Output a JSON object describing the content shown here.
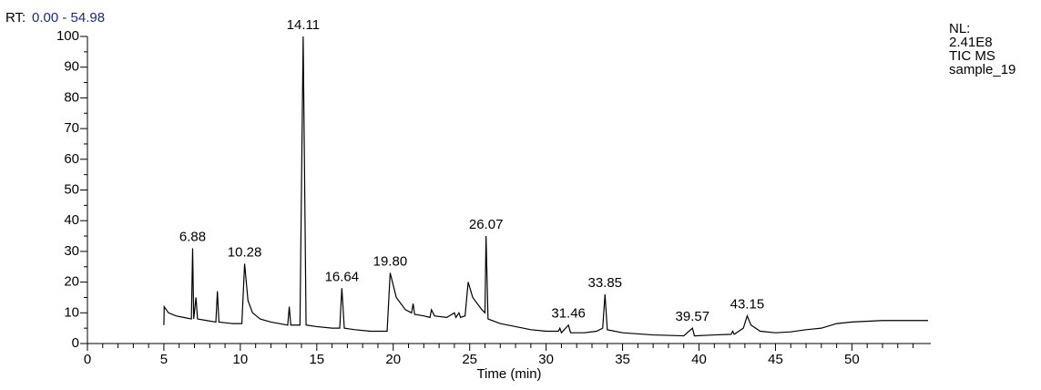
{
  "chart_data": {
    "type": "line",
    "rt_label": "RT:",
    "rt_range": "0.00 - 54.98",
    "info": [
      "NL:",
      "2.41E8",
      "TIC  MS",
      "sample_19"
    ],
    "xlabel": "Time (min)",
    "color": "#000000",
    "xlim": [
      0,
      54.98
    ],
    "ylim": [
      0,
      100
    ],
    "xticks": [
      0,
      5,
      10,
      15,
      20,
      25,
      30,
      35,
      40,
      45,
      50
    ],
    "xminorticks": [
      1,
      2,
      3,
      4,
      6,
      7,
      8,
      9,
      11,
      12,
      13,
      14,
      16,
      17,
      18,
      19,
      21,
      22,
      23,
      24,
      26,
      27,
      28,
      29,
      31,
      32,
      33,
      34,
      36,
      37,
      38,
      39,
      41,
      42,
      43,
      44,
      46,
      47,
      48,
      49,
      51,
      52,
      53,
      54
    ],
    "yticks": [
      0,
      10,
      20,
      30,
      40,
      50,
      60,
      70,
      80,
      90,
      100
    ],
    "yminorticks": [
      5,
      15,
      25,
      35,
      45,
      55,
      65,
      75,
      85,
      95
    ],
    "x": [
      5.0,
      5.02,
      5.3,
      5.8,
      6.3,
      6.8,
      6.88,
      6.95,
      7.1,
      7.2,
      7.8,
      8.4,
      8.5,
      8.6,
      9.5,
      10.1,
      10.28,
      10.5,
      10.8,
      11.3,
      12,
      13.1,
      13.2,
      13.3,
      13.9,
      14.11,
      14.3,
      15,
      16,
      16.5,
      16.64,
      16.8,
      17.5,
      18.5,
      19.6,
      19.8,
      20.2,
      20.8,
      21.2,
      21.3,
      21.4,
      22,
      22.4,
      22.5,
      22.7,
      23.5,
      24,
      24.1,
      24.3,
      24.4,
      24.7,
      24.9,
      25.2,
      25.8,
      26.0,
      26.07,
      26.2,
      27,
      28,
      29,
      30,
      30.8,
      30.9,
      31,
      31.46,
      31.6,
      32.5,
      33.3,
      33.7,
      33.85,
      34,
      35,
      37,
      39,
      39.57,
      39.7,
      41,
      42.1,
      42.2,
      42.3,
      42.9,
      43.15,
      43.4,
      44,
      45,
      46,
      47,
      48,
      49,
      50,
      52,
      54.98
    ],
    "values": [
      6,
      12,
      10,
      9,
      8.5,
      8,
      31,
      8,
      15,
      8,
      7.5,
      7,
      17,
      7,
      6.5,
      6.5,
      26,
      14,
      10,
      8,
      7,
      6,
      12,
      6,
      6,
      100,
      6,
      5.5,
      5,
      5,
      18,
      5,
      4.5,
      4,
      4,
      23,
      15,
      11,
      10,
      13,
      9.5,
      9,
      8.5,
      11,
      9,
      8.5,
      10,
      8.5,
      10,
      8.5,
      9,
      20,
      15,
      11,
      10,
      35,
      8,
      6.5,
      5.5,
      4.5,
      4,
      4,
      5,
      3.5,
      6,
      3.5,
      3.5,
      4,
      5,
      16,
      4.5,
      3.5,
      2.8,
      2.5,
      5,
      2.5,
      2.8,
      3,
      4,
      3,
      5,
      9,
      6,
      4,
      3.5,
      3.8,
      4.5,
      5,
      6.5,
      7,
      7.5,
      7.5
    ],
    "annotations": [
      {
        "text": "6.88",
        "x": 6.88,
        "y": 31
      },
      {
        "text": "10.28",
        "x": 10.28,
        "y": 26
      },
      {
        "text": "14.11",
        "x": 14.11,
        "y": 100
      },
      {
        "text": "16.64",
        "x": 16.64,
        "y": 18
      },
      {
        "text": "19.80",
        "x": 19.8,
        "y": 23
      },
      {
        "text": "26.07",
        "x": 26.07,
        "y": 35
      },
      {
        "text": "31.46",
        "x": 31.46,
        "y": 6
      },
      {
        "text": "33.85",
        "x": 33.85,
        "y": 16
      },
      {
        "text": "39.57",
        "x": 39.57,
        "y": 5
      },
      {
        "text": "43.15",
        "x": 43.15,
        "y": 9
      }
    ]
  }
}
